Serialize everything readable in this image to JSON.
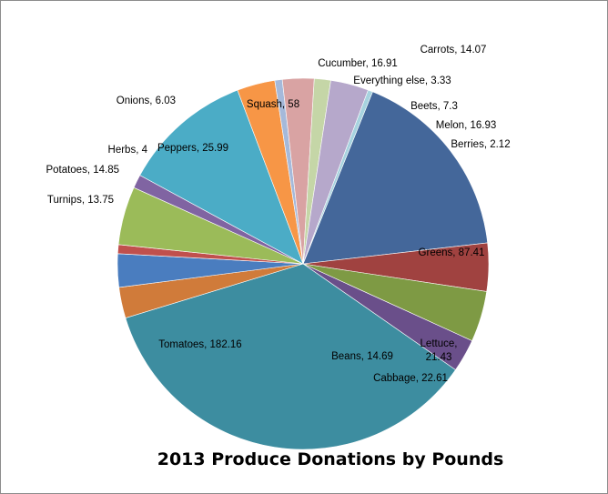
{
  "chart_data": {
    "type": "pie",
    "title": "2013 Produce Donations by Pounds",
    "slices": [
      {
        "label": "Greens, 87.41",
        "name": "Greens",
        "value": 87.41,
        "color": "#44679a"
      },
      {
        "label": "Lettuce, 21.43",
        "name": "Lettuce",
        "value": 21.43,
        "color": "#a04240"
      },
      {
        "label": "Cabbage, 22.61",
        "name": "Cabbage",
        "value": 22.61,
        "color": "#7e9a44"
      },
      {
        "label": "Beans, 14.69",
        "name": "Beans",
        "value": 14.69,
        "color": "#6a4f8a"
      },
      {
        "label": "Tomatoes, 182.16",
        "name": "Tomatoes",
        "value": 182.16,
        "color": "#3d8da0"
      },
      {
        "label": "Turnips, 13.75",
        "name": "Turnips",
        "value": 13.75,
        "color": "#d07b3a"
      },
      {
        "label": "Potatoes, 14.85",
        "name": "Potatoes",
        "value": 14.85,
        "color": "#4a7dbf"
      },
      {
        "label": "Herbs, 4",
        "name": "Herbs",
        "value": 4,
        "color": "#c0504d"
      },
      {
        "label": "Peppers, 25.99",
        "name": "Peppers",
        "value": 25.99,
        "color": "#9bbb59"
      },
      {
        "label": "Onions, 6.03",
        "name": "Onions",
        "value": 6.03,
        "color": "#8064a2"
      },
      {
        "label": "Squash, 58",
        "name": "Squash",
        "value": 58,
        "color": "#4bacc6"
      },
      {
        "label": "Cucumber, 16.91",
        "name": "Cucumber",
        "value": 16.91,
        "color": "#f79646"
      },
      {
        "label": "Everything else, 3.33",
        "name": "Everything else",
        "value": 3.33,
        "color": "#a5b9da"
      },
      {
        "label": "Carrots, 14.07",
        "name": "Carrots",
        "value": 14.07,
        "color": "#d9a3a3"
      },
      {
        "label": "Beets, 7.3",
        "name": "Beets",
        "value": 7.3,
        "color": "#c5d6a7"
      },
      {
        "label": "Melon, 16.93",
        "name": "Melon",
        "value": 16.93,
        "color": "#b6a8cb"
      },
      {
        "label": "Berries, 2.12",
        "name": "Berries",
        "value": 2.12,
        "color": "#a7d3df"
      }
    ]
  }
}
